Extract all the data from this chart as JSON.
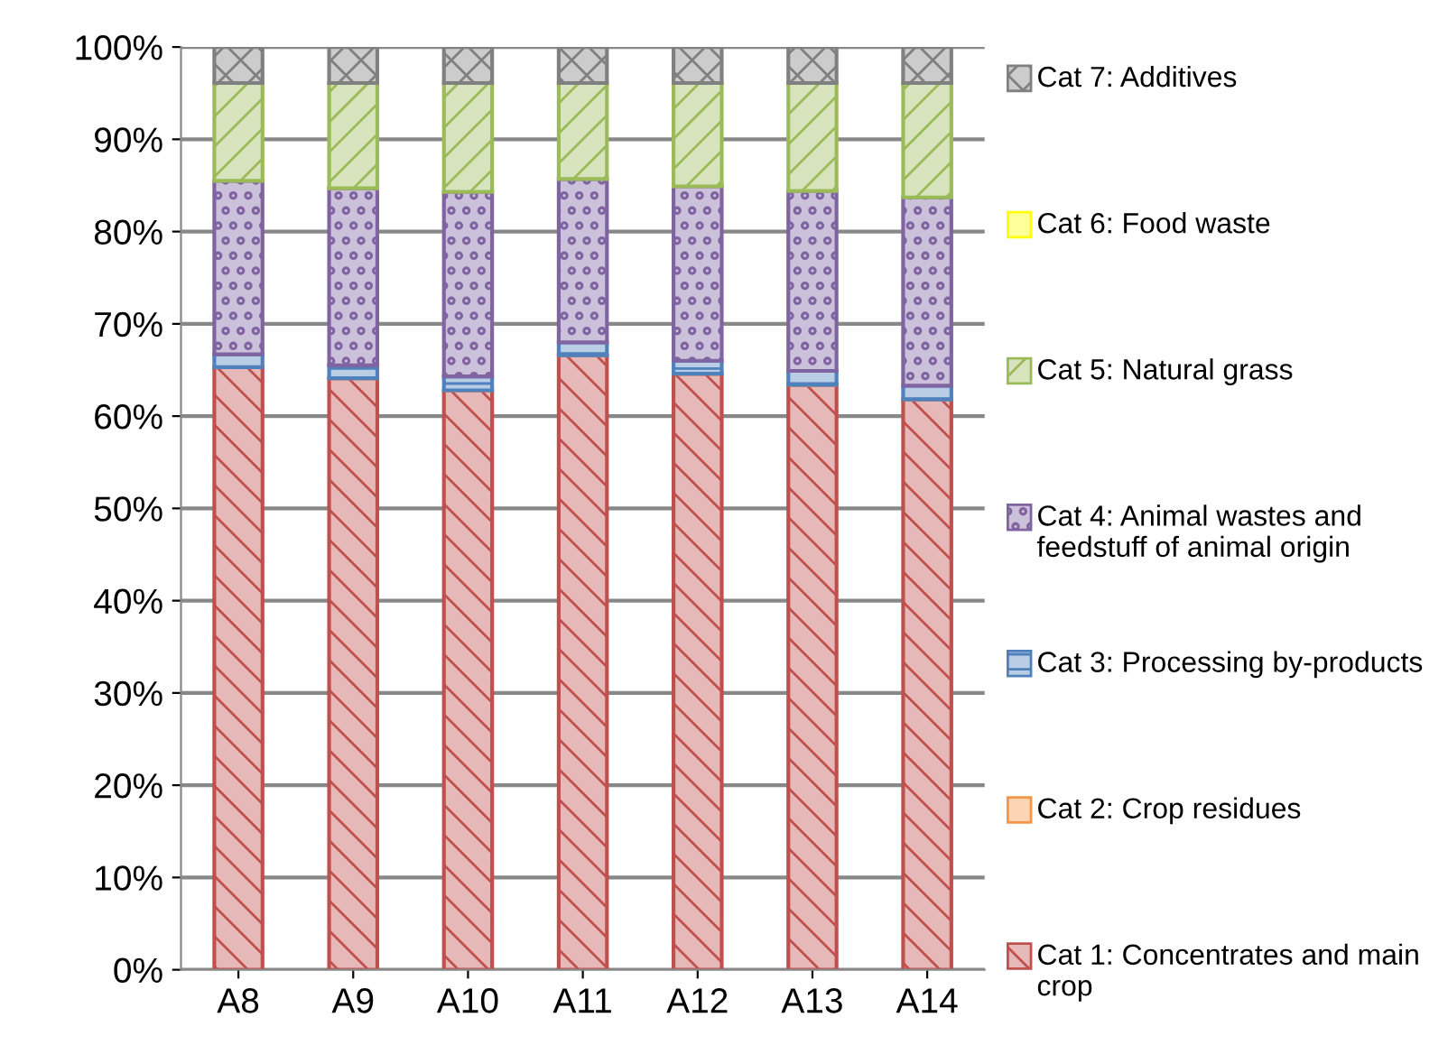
{
  "chart_data": {
    "type": "bar",
    "stacked": true,
    "categories": [
      "A8",
      "A9",
      "A10",
      "A11",
      "A12",
      "A13",
      "A14"
    ],
    "series": [
      {
        "name": "Cat 1: Concentrates and main crop",
        "color": "#c0504d",
        "values": [
          65.3,
          64.1,
          62.8,
          66.6,
          64.6,
          63.4,
          61.8
        ]
      },
      {
        "name": "Cat 2: Crop residues",
        "color": "#f79646",
        "values": [
          0,
          0,
          0,
          0,
          0,
          0,
          0
        ]
      },
      {
        "name": "Cat 3: Processing by-products",
        "color": "#4f81bd",
        "values": [
          1.4,
          1.4,
          1.5,
          1.4,
          1.4,
          1.5,
          1.5
        ]
      },
      {
        "name": "Cat 4: Animal wastes and feedstuff of animal origin",
        "color": "#8064a2",
        "values": [
          18.8,
          19.2,
          20.0,
          17.7,
          18.9,
          19.5,
          20.4
        ]
      },
      {
        "name": "Cat 5: Natural grass",
        "color": "#9bbb59",
        "values": [
          10.6,
          11.4,
          11.8,
          10.4,
          11.2,
          11.7,
          12.4
        ]
      },
      {
        "name": "Cat 6: Food waste",
        "color": "#ffff00",
        "values": [
          0,
          0,
          0,
          0,
          0,
          0,
          0
        ]
      },
      {
        "name": "Cat 7: Additives",
        "color": "#808080",
        "values": [
          3.9,
          3.9,
          3.9,
          3.9,
          3.9,
          3.9,
          3.9
        ]
      }
    ],
    "ylim": [
      0,
      100
    ],
    "yticks": [
      {
        "value": 0,
        "label": "0%"
      },
      {
        "value": 10,
        "label": "10%"
      },
      {
        "value": 20,
        "label": "20%"
      },
      {
        "value": 30,
        "label": "30%"
      },
      {
        "value": 40,
        "label": "40%"
      },
      {
        "value": 50,
        "label": "50%"
      },
      {
        "value": 60,
        "label": "60%"
      },
      {
        "value": 70,
        "label": "70%"
      },
      {
        "value": 80,
        "label": "80%"
      },
      {
        "value": 90,
        "label": "90%"
      },
      {
        "value": 100,
        "label": "100%"
      }
    ],
    "grid": "y",
    "legend": "right"
  }
}
